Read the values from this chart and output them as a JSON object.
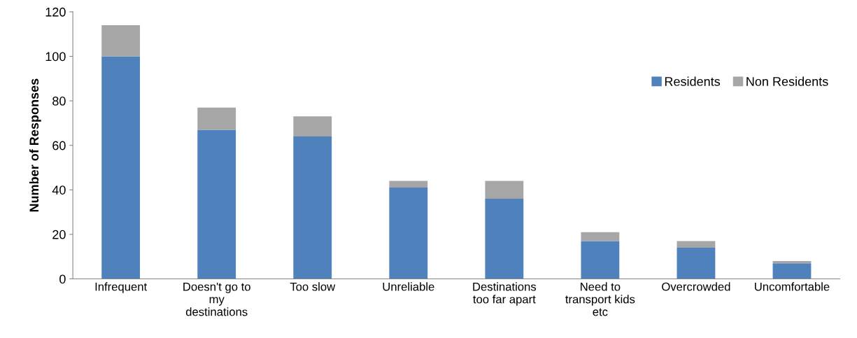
{
  "chart_data": {
    "type": "bar",
    "stacked": true,
    "ylabel": "Number of Responses",
    "categories": [
      "Infrequent",
      "Doesn't go to\nmy\ndestinations",
      "Too slow",
      "Unreliable",
      "Destinations\ntoo far apart",
      "Need to\ntransport kids\netc",
      "Overcrowded",
      "Uncomfortable"
    ],
    "series": [
      {
        "name": "Residents",
        "color": "#4f81bd",
        "values": [
          100,
          67,
          64,
          41,
          36,
          17,
          14,
          7
        ]
      },
      {
        "name": "Non Residents",
        "color": "#a6a6a6",
        "values": [
          14,
          10,
          9,
          3,
          8,
          4,
          3,
          1
        ]
      }
    ],
    "ylim": [
      0,
      120
    ],
    "yticks": [
      0,
      20,
      40,
      60,
      80,
      100,
      120
    ],
    "legend": "top right"
  }
}
